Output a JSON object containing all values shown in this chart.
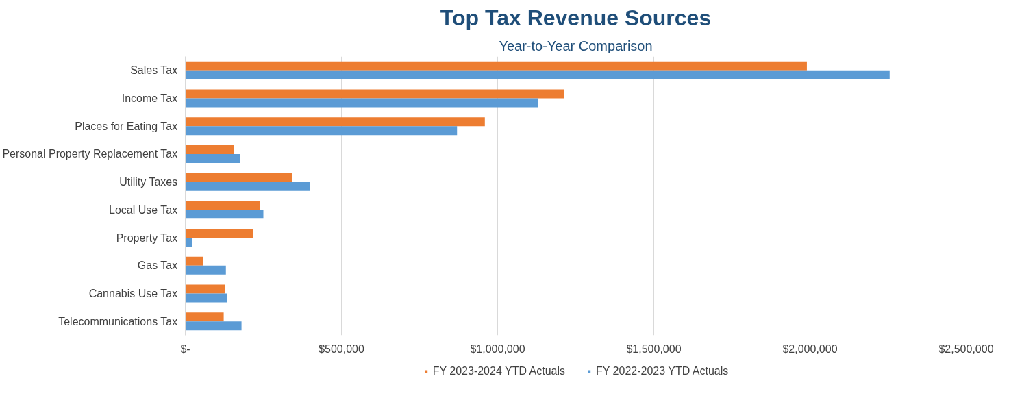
{
  "chart_data": {
    "type": "bar",
    "orientation": "horizontal",
    "title": "Top Tax Revenue Sources",
    "subtitle": "Year-to-Year Comparison",
    "categories": [
      "Sales Tax",
      "Income Tax",
      "Places for Eating Tax",
      "Personal Property Replacement Tax",
      "Utility Taxes",
      "Local Use Tax",
      "Property Tax",
      "Gas Tax",
      "Cannabis Use Tax",
      "Telecommunications Tax"
    ],
    "series": [
      {
        "name": "FY 2023-2024 YTD Actuals",
        "color": "#ed7d31",
        "values": [
          1990000,
          1213000,
          959000,
          155000,
          341000,
          239000,
          218000,
          57000,
          127000,
          123000
        ]
      },
      {
        "name": "FY 2022-2023 YTD Actuals",
        "color": "#5b9bd5",
        "values": [
          2255000,
          1130000,
          870000,
          175000,
          400000,
          250000,
          23000,
          130000,
          134000,
          180000
        ]
      }
    ],
    "xlim": [
      0,
      2500000
    ],
    "xticks": [
      {
        "value": 0,
        "label": "$-"
      },
      {
        "value": 500000,
        "label": "$500,000"
      },
      {
        "value": 1000000,
        "label": "$1,000,000"
      },
      {
        "value": 1500000,
        "label": "$1,500,000"
      },
      {
        "value": 2000000,
        "label": "$2,000,000"
      },
      {
        "value": 2500000,
        "label": "$2,500,000"
      }
    ],
    "grid": "x",
    "legend": "bottom"
  }
}
